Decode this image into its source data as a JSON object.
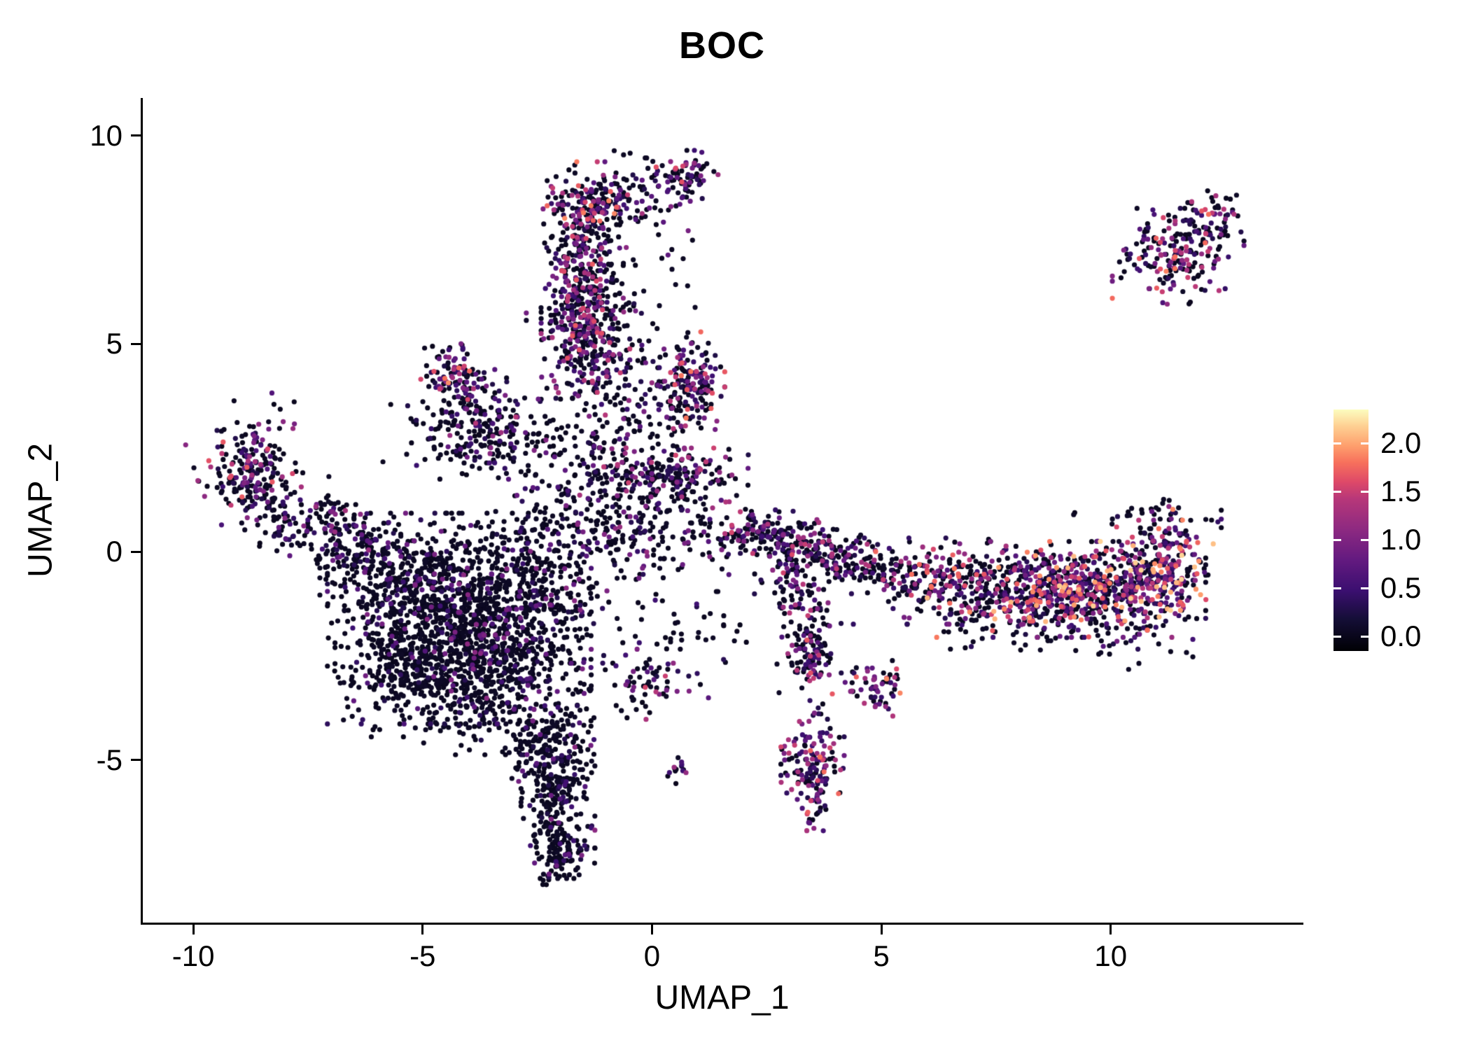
{
  "chart_data": {
    "type": "scatter",
    "title": "BOC",
    "xlabel": "UMAP_1",
    "ylabel": "UMAP_2",
    "xlim": [
      -11.1,
      14.2
    ],
    "ylim": [
      -8.9,
      10.9
    ],
    "grid": false,
    "x_ticks": [
      {
        "v": -10,
        "label": "-10"
      },
      {
        "v": -5,
        "label": "-5"
      },
      {
        "v": 0,
        "label": "0"
      },
      {
        "v": 5,
        "label": "5"
      },
      {
        "v": 10,
        "label": "10"
      }
    ],
    "y_ticks": [
      {
        "v": -5,
        "label": "-5"
      },
      {
        "v": 0,
        "label": "0"
      },
      {
        "v": 5,
        "label": "5"
      },
      {
        "v": 10,
        "label": "10"
      }
    ],
    "legend": {
      "position": "right",
      "domain": [
        -0.15,
        2.35
      ],
      "ticks": [
        {
          "v": 0.0,
          "label": "0.0"
        },
        {
          "v": 0.5,
          "label": "0.5"
        },
        {
          "v": 1.0,
          "label": "1.0"
        },
        {
          "v": 1.5,
          "label": "1.5"
        },
        {
          "v": 2.0,
          "label": "2.0"
        }
      ],
      "colormap": "magma",
      "stops": [
        [
          0.0,
          "#000004"
        ],
        [
          0.13,
          "#140e36"
        ],
        [
          0.25,
          "#3b0f70"
        ],
        [
          0.38,
          "#641a80"
        ],
        [
          0.5,
          "#8c2981"
        ],
        [
          0.63,
          "#b73779"
        ],
        [
          0.7,
          "#de4968"
        ],
        [
          0.78,
          "#f7705c"
        ],
        [
          0.85,
          "#fe9f6d"
        ],
        [
          0.93,
          "#fecf92"
        ],
        [
          1.0,
          "#fcfdbf"
        ]
      ]
    },
    "expression_range": [
      0.0,
      2.2
    ],
    "seed": 7,
    "clusters": [
      {
        "cx": -1.25,
        "cy": 8.45,
        "sx": 0.45,
        "sy": 0.4,
        "n": 160,
        "p0": 0.45,
        "hi": 1.9
      },
      {
        "cx": 0.75,
        "cy": 9.0,
        "sx": 0.3,
        "sy": 0.28,
        "n": 70,
        "p0": 0.45,
        "hi": 1.8
      },
      {
        "cx": -0.2,
        "cy": 8.6,
        "sx": 0.55,
        "sy": 0.45,
        "n": 60,
        "p0": 0.7,
        "hi": 1.2
      },
      {
        "cx": -1.5,
        "cy": 6.9,
        "sx": 0.38,
        "sy": 0.75,
        "n": 230,
        "p0": 0.5,
        "hi": 1.7
      },
      {
        "cx": -1.45,
        "cy": 5.3,
        "sx": 0.42,
        "sy": 0.7,
        "n": 260,
        "p0": 0.5,
        "hi": 1.7
      },
      {
        "cx": -0.9,
        "cy": 6.2,
        "sx": 0.8,
        "sy": 1.1,
        "n": 90,
        "p0": 0.75,
        "hi": 1.2
      },
      {
        "cx": 0.85,
        "cy": 4.25,
        "sx": 0.32,
        "sy": 0.45,
        "n": 130,
        "p0": 0.4,
        "hi": 1.9
      },
      {
        "cx": 0.4,
        "cy": 3.6,
        "sx": 0.6,
        "sy": 0.6,
        "n": 80,
        "p0": 0.65,
        "hi": 1.4
      },
      {
        "cx": 0.4,
        "cy": 1.85,
        "sx": 0.75,
        "sy": 0.28,
        "n": 170,
        "p0": 0.55,
        "hi": 1.6
      },
      {
        "cx": -0.9,
        "cy": 1.3,
        "sx": 1.1,
        "sy": 0.8,
        "n": 200,
        "p0": 0.75,
        "hi": 1.3
      },
      {
        "cx": -1.4,
        "cy": 2.8,
        "sx": 0.9,
        "sy": 0.8,
        "n": 130,
        "p0": 0.75,
        "hi": 1.2
      },
      {
        "cx": -4.35,
        "cy": 4.35,
        "sx": 0.3,
        "sy": 0.3,
        "n": 70,
        "p0": 0.35,
        "hi": 2.0
      },
      {
        "cx": -3.9,
        "cy": 3.4,
        "sx": 0.45,
        "sy": 0.55,
        "n": 110,
        "p0": 0.6,
        "hi": 1.5
      },
      {
        "cx": -3.3,
        "cy": 2.7,
        "sx": 0.5,
        "sy": 0.4,
        "n": 90,
        "p0": 0.7,
        "hi": 1.2
      },
      {
        "cx": -4.6,
        "cy": 2.9,
        "sx": 0.55,
        "sy": 0.5,
        "n": 60,
        "p0": 0.85,
        "hi": 1.0
      },
      {
        "cx": -8.9,
        "cy": 1.8,
        "sx": 0.55,
        "sy": 0.5,
        "n": 150,
        "p0": 0.55,
        "hi": 1.7
      },
      {
        "cx": -8.6,
        "cy": 2.7,
        "sx": 0.35,
        "sy": 0.5,
        "n": 40,
        "p0": 0.7,
        "hi": 1.3
      },
      {
        "cx": -7.6,
        "cy": 0.9,
        "sx": 0.7,
        "sy": 0.45,
        "n": 130,
        "p0": 0.7,
        "hi": 1.3,
        "rot": -0.3
      },
      {
        "cx": -6.5,
        "cy": 0.2,
        "sx": 0.7,
        "sy": 0.4,
        "n": 120,
        "p0": 0.8,
        "hi": 1.1,
        "rot": -0.25
      },
      {
        "cx": -5.4,
        "cy": -0.4,
        "sx": 0.8,
        "sy": 0.5,
        "n": 200,
        "p0": 0.85,
        "hi": 1.0
      },
      {
        "cx": -4.2,
        "cy": -1.6,
        "sx": 1.25,
        "sy": 1.1,
        "n": 900,
        "p0": 0.85,
        "hi": 1.1
      },
      {
        "cx": -3.4,
        "cy": -2.8,
        "sx": 0.9,
        "sy": 0.9,
        "n": 450,
        "p0": 0.85,
        "hi": 1.0
      },
      {
        "cx": -5.3,
        "cy": -2.6,
        "sx": 0.7,
        "sy": 0.8,
        "n": 280,
        "p0": 0.87,
        "hi": 1.0
      },
      {
        "cx": -2.6,
        "cy": -0.6,
        "sx": 0.8,
        "sy": 0.9,
        "n": 280,
        "p0": 0.8,
        "hi": 1.1
      },
      {
        "cx": -2.3,
        "cy": -4.6,
        "sx": 0.45,
        "sy": 0.6,
        "n": 160,
        "p0": 0.85,
        "hi": 1.0
      },
      {
        "cx": -2.05,
        "cy": -6.0,
        "sx": 0.35,
        "sy": 0.8,
        "n": 240,
        "p0": 0.8,
        "hi": 1.1
      },
      {
        "cx": -2.0,
        "cy": -7.3,
        "sx": 0.25,
        "sy": 0.3,
        "n": 60,
        "p0": 0.8,
        "hi": 1.0
      },
      {
        "cx": -0.1,
        "cy": -3.1,
        "sx": 0.6,
        "sy": 0.4,
        "n": 70,
        "p0": 0.6,
        "hi": 1.6
      },
      {
        "cx": 0.55,
        "cy": -5.25,
        "sx": 0.15,
        "sy": 0.15,
        "n": 14,
        "p0": 0.5,
        "hi": 1.2
      },
      {
        "cx": 2.4,
        "cy": 0.5,
        "sx": 0.5,
        "sy": 0.25,
        "n": 110,
        "p0": 0.5,
        "hi": 1.6,
        "rot": -0.15
      },
      {
        "cx": 3.5,
        "cy": 0.1,
        "sx": 0.6,
        "sy": 0.3,
        "n": 130,
        "p0": 0.55,
        "hi": 1.6,
        "rot": -0.15
      },
      {
        "cx": 4.6,
        "cy": -0.3,
        "sx": 0.6,
        "sy": 0.3,
        "n": 110,
        "p0": 0.6,
        "hi": 1.5,
        "rot": -0.15
      },
      {
        "cx": 2.9,
        "cy": -0.6,
        "sx": 0.3,
        "sy": 0.4,
        "n": 50,
        "p0": 0.6,
        "hi": 1.4
      },
      {
        "cx": 3.3,
        "cy": -1.5,
        "sx": 0.25,
        "sy": 0.6,
        "n": 80,
        "p0": 0.55,
        "hi": 1.5
      },
      {
        "cx": 3.55,
        "cy": -2.5,
        "sx": 0.25,
        "sy": 0.5,
        "n": 70,
        "p0": 0.5,
        "hi": 1.7
      },
      {
        "cx": 4.9,
        "cy": -3.25,
        "sx": 0.3,
        "sy": 0.3,
        "n": 60,
        "p0": 0.35,
        "hi": 1.9
      },
      {
        "cx": 3.5,
        "cy": -5.2,
        "sx": 0.3,
        "sy": 0.65,
        "n": 160,
        "p0": 0.35,
        "hi": 1.8
      },
      {
        "cx": 6.3,
        "cy": -0.7,
        "sx": 0.9,
        "sy": 0.45,
        "n": 220,
        "p0": 0.55,
        "hi": 1.8
      },
      {
        "cx": 8.3,
        "cy": -0.9,
        "sx": 1.0,
        "sy": 0.5,
        "n": 380,
        "p0": 0.4,
        "hi": 2.1
      },
      {
        "cx": 10.0,
        "cy": -0.9,
        "sx": 0.9,
        "sy": 0.5,
        "n": 380,
        "p0": 0.35,
        "hi": 2.2
      },
      {
        "cx": 11.2,
        "cy": -0.5,
        "sx": 0.45,
        "sy": 0.55,
        "n": 180,
        "p0": 0.25,
        "hi": 2.2
      },
      {
        "cx": 10.8,
        "cy": 0.6,
        "sx": 0.7,
        "sy": 0.4,
        "n": 70,
        "p0": 0.5,
        "hi": 2.0
      },
      {
        "cx": 8.8,
        "cy": -1.9,
        "sx": 1.3,
        "sy": 0.4,
        "n": 80,
        "p0": 0.8,
        "hi": 1.2
      },
      {
        "cx": 11.3,
        "cy": 7.1,
        "sx": 0.55,
        "sy": 0.5,
        "n": 170,
        "p0": 0.5,
        "hi": 1.9
      },
      {
        "cx": 12.1,
        "cy": 7.9,
        "sx": 0.35,
        "sy": 0.35,
        "n": 60,
        "p0": 0.5,
        "hi": 1.8
      },
      {
        "cx": 12.4,
        "cy": 8.35,
        "sx": 0.15,
        "sy": 0.12,
        "n": 12,
        "p0": 0.4,
        "hi": 1.6
      },
      {
        "cx": 1.6,
        "cy": 0.2,
        "sx": 0.5,
        "sy": 0.5,
        "n": 30,
        "p0": 0.8,
        "hi": 1.0
      },
      {
        "cx": 0.7,
        "cy": -2.0,
        "sx": 0.9,
        "sy": 0.6,
        "n": 40,
        "p0": 0.85,
        "hi": 0.8
      },
      {
        "cx": -1.1,
        "cy": 4.35,
        "sx": 0.5,
        "sy": 0.5,
        "n": 60,
        "p0": 0.55,
        "hi": 1.5
      },
      {
        "cx": -0.35,
        "cy": 0.35,
        "sx": 0.7,
        "sy": 0.45,
        "n": 90,
        "p0": 0.7,
        "hi": 1.2
      }
    ]
  },
  "colors": {
    "background": "#ffffff",
    "axis": "#000000",
    "text": "#000000",
    "legend_tick": "#ffffff"
  }
}
